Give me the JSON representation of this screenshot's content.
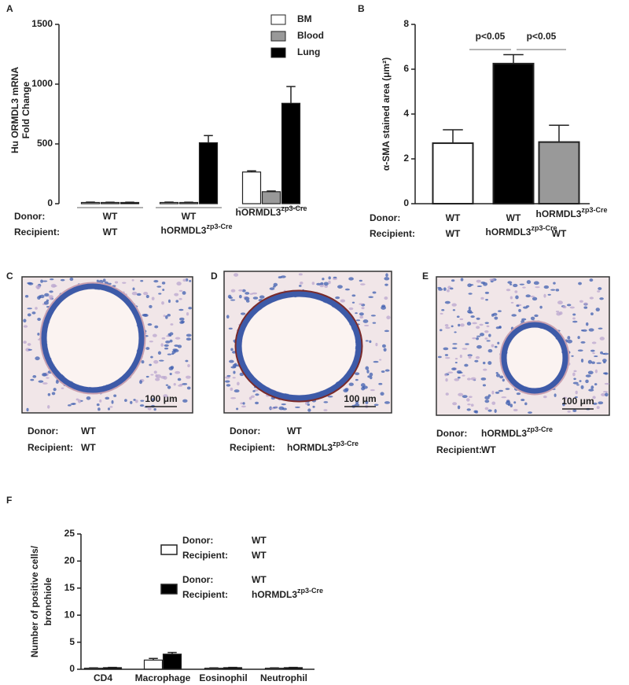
{
  "chart_data": [
    {
      "panel": "A",
      "type": "bar",
      "ylabel": [
        "Hu ORMDL3 mRNA",
        "Fold Change"
      ],
      "donor_label": "Donor:",
      "recipient_label": "Recipient:",
      "donors": [
        "WT",
        "WT",
        {
          "text": "hORMDL3",
          "sup": "zp3-Cre"
        }
      ],
      "recipients": [
        "WT",
        {
          "text": "hORMDL3",
          "sup": "zp3-Cre"
        },
        null
      ],
      "series": [
        {
          "name": "BM",
          "color": "#ffffff",
          "values": [
            10,
            10,
            265
          ],
          "errors": [
            3,
            3,
            10
          ]
        },
        {
          "name": "Blood",
          "color": "#999999",
          "values": [
            10,
            10,
            100
          ],
          "errors": [
            2,
            2,
            6
          ]
        },
        {
          "name": "Lung",
          "color": "#000000",
          "values": [
            10,
            510,
            840
          ],
          "errors": [
            2,
            60,
            140
          ]
        }
      ],
      "ylim": [
        0,
        1500
      ],
      "yticks": [
        0,
        500,
        1000,
        1500
      ]
    },
    {
      "panel": "B",
      "type": "bar",
      "ylabel": [
        "α-SMA stained area (μm²)"
      ],
      "donor_label": "Donor:",
      "recipient_label": "Recipient:",
      "donors": [
        "WT",
        "WT",
        {
          "text": "hORMDL3",
          "sup": "zp3-Cre"
        }
      ],
      "recipients": [
        "WT",
        {
          "text": "hORMDL3",
          "sup": "zp3-Cre"
        },
        "WT"
      ],
      "values": [
        2.7,
        6.25,
        2.75
      ],
      "errors": [
        0.6,
        0.4,
        0.75
      ],
      "colors": [
        "#ffffff",
        "#000000",
        "#999999"
      ],
      "annotations": [
        "p<0.05",
        "p<0.05"
      ],
      "ylim": [
        0,
        8
      ],
      "yticks": [
        0,
        2,
        4,
        6,
        8
      ]
    },
    {
      "panel": "F",
      "type": "bar",
      "ylabel": [
        "Number of positive cells/",
        "bronchiole"
      ],
      "categories": [
        "CD4",
        "Macrophage",
        "Eosinophil",
        "Neutrophil"
      ],
      "series": [
        {
          "donor_label": "Donor:",
          "donor": "WT",
          "recipient_label": "Recipient:",
          "recipient": "WT",
          "color": "#ffffff",
          "values": [
            0.2,
            1.7,
            0.2,
            0.2
          ],
          "errors": [
            0.05,
            0.3,
            0.05,
            0.05
          ]
        },
        {
          "donor_label": "Donor:",
          "donor": "WT",
          "recipient_label": "Recipient:",
          "recipient": {
            "text": "hORMDL3",
            "sup": "zp3-Cre"
          },
          "color": "#000000",
          "values": [
            0.3,
            2.8,
            0.3,
            0.3
          ],
          "errors": [
            0.05,
            0.3,
            0.05,
            0.05
          ]
        }
      ],
      "ylim": [
        0,
        25
      ],
      "yticks": [
        0,
        5,
        10,
        15,
        20,
        25
      ]
    }
  ],
  "images": [
    {
      "panel": "C",
      "scale": "100 μm",
      "donor_label": "Donor:",
      "donor": "WT",
      "recipient_label": "Recipient:",
      "recipient": "WT"
    },
    {
      "panel": "D",
      "scale": "100 μm",
      "donor_label": "Donor:",
      "donor": "WT",
      "recipient_label": "Recipient:",
      "recipient": {
        "text": "hORMDL3",
        "sup": "zp3-Cre"
      }
    },
    {
      "panel": "E",
      "scale": "100 μm",
      "donor_label": "Donor:",
      "donor": {
        "text": "hORMDL3",
        "sup": "zp3-Cre"
      },
      "recipient_label": "Recipient:",
      "recipient": "WT"
    }
  ]
}
